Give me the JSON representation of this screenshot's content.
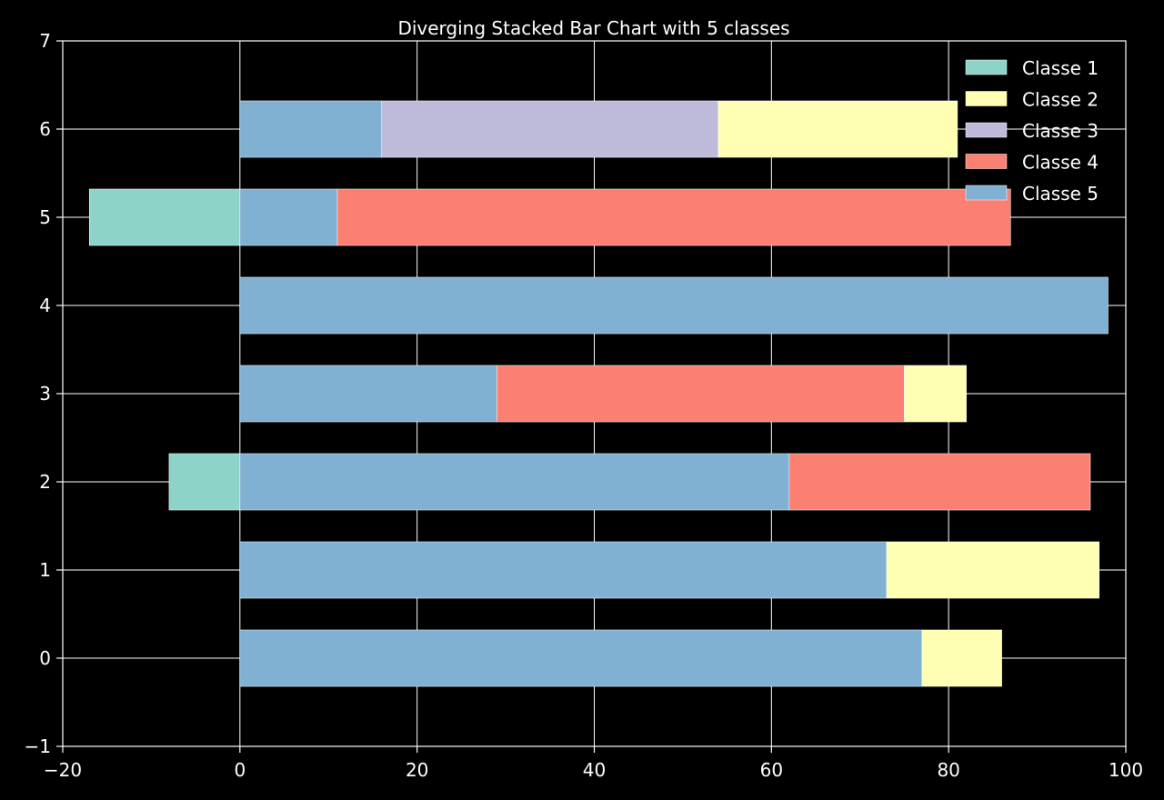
{
  "chart_data": {
    "type": "bar",
    "orientation": "horizontal",
    "stacking": "diverging",
    "title": "Diverging Stacked Bar Chart with 5 classes",
    "xlabel": "",
    "ylabel": "",
    "xlim": [
      -20,
      100
    ],
    "ylim": [
      -1,
      7
    ],
    "xticks": [
      -20,
      0,
      20,
      40,
      60,
      80,
      100
    ],
    "yticks": [
      -1,
      0,
      1,
      2,
      3,
      4,
      5,
      6,
      7
    ],
    "xtick_labels": [
      "−20",
      "0",
      "20",
      "40",
      "60",
      "80",
      "100"
    ],
    "ytick_labels": [
      "−1",
      "0",
      "1",
      "2",
      "3",
      "4",
      "5",
      "6",
      "7"
    ],
    "grid": true,
    "legend_position": "top-right",
    "background": "#000000",
    "axis_color": "#ffffff",
    "categories": [
      0,
      1,
      2,
      3,
      4,
      5,
      6
    ],
    "series": [
      {
        "name": "Classe 1",
        "color": "#8dd3c7",
        "values": [
          0,
          0,
          -8,
          0,
          0,
          -17,
          0
        ]
      },
      {
        "name": "Classe 2",
        "color": "#ffffb3",
        "values": [
          9,
          24,
          0,
          7,
          0,
          0,
          27
        ]
      },
      {
        "name": "Classe 3",
        "color": "#bebada",
        "values": [
          0,
          0,
          0,
          0,
          0,
          0,
          38
        ]
      },
      {
        "name": "Classe 4",
        "color": "#fb8072",
        "values": [
          0,
          0,
          34,
          46,
          0,
          76,
          0
        ]
      },
      {
        "name": "Classe 5",
        "color": "#80b1d3",
        "values": [
          77,
          73,
          62,
          29,
          98,
          11,
          16
        ]
      }
    ],
    "stack_order_positive": [
      "Classe 5",
      "Classe 4",
      "Classe 3",
      "Classe 2"
    ],
    "stack_order_negative": [
      "Classe 1"
    ]
  }
}
